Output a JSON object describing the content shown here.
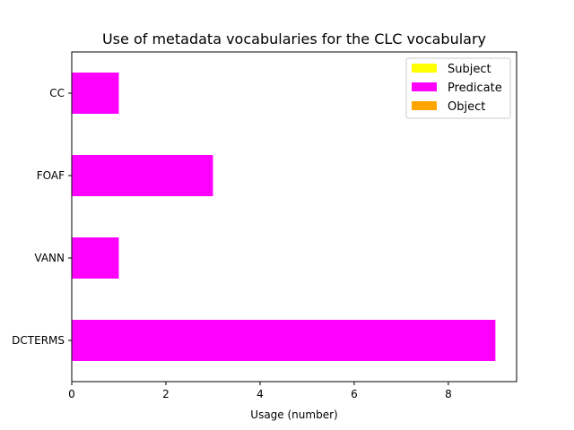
{
  "chart_data": {
    "type": "bar",
    "orientation": "horizontal",
    "stacked": true,
    "title": "Use of metadata vocabularies for the CLC vocabulary",
    "xlabel": "Usage (number)",
    "ylabel": "",
    "categories": [
      "DCTERMS",
      "VANN",
      "FOAF",
      "CC"
    ],
    "series": [
      {
        "name": "Subject",
        "color": "#ffff00",
        "values": [
          0,
          0,
          0,
          0
        ]
      },
      {
        "name": "Predicate",
        "color": "#ff00ff",
        "values": [
          9,
          1,
          3,
          1
        ]
      },
      {
        "name": "Object",
        "color": "#ffa500",
        "values": [
          0,
          0,
          0,
          0
        ]
      }
    ],
    "xlim": [
      0,
      9.45
    ],
    "xticks": [
      0,
      2,
      4,
      6,
      8
    ],
    "grid": false,
    "legend": "top-right"
  }
}
